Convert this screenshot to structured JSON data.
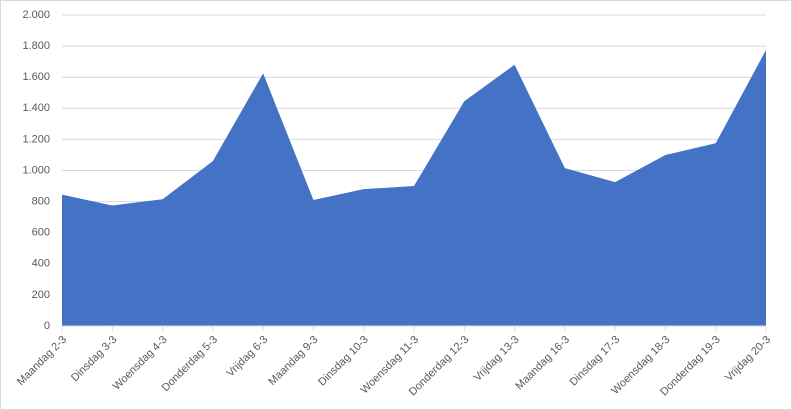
{
  "chart_data": {
    "type": "area",
    "color": "#4472c4",
    "categories": [
      "Maandag 2-3",
      "Dinsdag 3-3",
      "Woensdag 4-3",
      "Donderdag 5-3",
      "Vrijdag 6-3",
      "Maandag 9-3",
      "Dinsdag 10-3",
      "Woensdag 11-3",
      "Donderdag 12-3",
      "Vrijdag 13-3",
      "Maandag 16-3",
      "Dinsdag 17-3",
      "Woensdag 18-3",
      "Donderdag 19-3",
      "Vrijdag 20-3"
    ],
    "values": [
      845,
      775,
      815,
      1060,
      1625,
      810,
      880,
      900,
      1445,
      1680,
      1015,
      925,
      1100,
      1175,
      1775
    ],
    "ylim": [
      0,
      2000
    ],
    "yticks": [
      0,
      200,
      400,
      600,
      800,
      {
        "value": 1000,
        "label": "1.000"
      },
      {
        "value": 1200,
        "label": "1.200"
      },
      {
        "value": 1400,
        "label": "1.400"
      },
      {
        "value": 1600,
        "label": "1.600"
      },
      {
        "value": 1800,
        "label": "1.800"
      },
      {
        "value": 2000,
        "label": "2.000"
      }
    ],
    "grid": true
  }
}
